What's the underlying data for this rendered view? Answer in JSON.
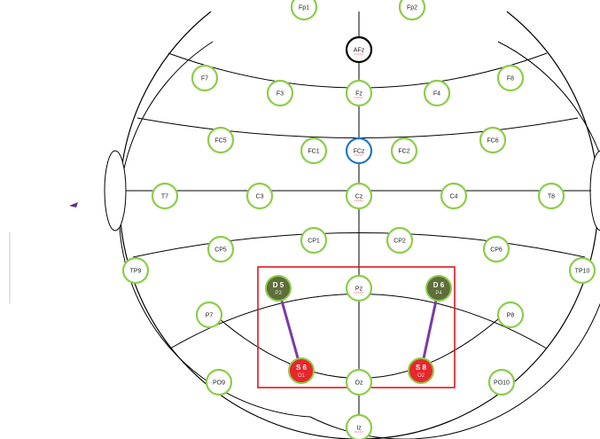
{
  "colors": {
    "electrode_stroke": "#8ccd4a",
    "reference_stroke": "#000000",
    "ground_stroke": "#1f78c8",
    "detector_fill": "#5f6e3a",
    "source_fill": "#e8272b",
    "channel_line": "#7a3aa8",
    "roi_box": "#e3161b"
  },
  "electrodes": [
    {
      "id": "Fp1",
      "label": "Fp1"
    },
    {
      "id": "Fp2",
      "label": "Fp2"
    },
    {
      "id": "AFz",
      "label": "AFz"
    },
    {
      "id": "F7",
      "label": "F7"
    },
    {
      "id": "F3",
      "label": "F3"
    },
    {
      "id": "Fz",
      "label": "Fz"
    },
    {
      "id": "F4",
      "label": "F4"
    },
    {
      "id": "F8",
      "label": "F8"
    },
    {
      "id": "FC5",
      "label": "FC5"
    },
    {
      "id": "FC1",
      "label": "FC1"
    },
    {
      "id": "FCz",
      "label": "FCz"
    },
    {
      "id": "FC2",
      "label": "FC2"
    },
    {
      "id": "FC6",
      "label": "FC6"
    },
    {
      "id": "T7",
      "label": "T7"
    },
    {
      "id": "C3",
      "label": "C3"
    },
    {
      "id": "Cz",
      "label": "Cz"
    },
    {
      "id": "C4",
      "label": "C4"
    },
    {
      "id": "T8",
      "label": "T8"
    },
    {
      "id": "CP5",
      "label": "CP5"
    },
    {
      "id": "CP1",
      "label": "CP1"
    },
    {
      "id": "CP2",
      "label": "CP2"
    },
    {
      "id": "CP6",
      "label": "CP6"
    },
    {
      "id": "TP9",
      "label": "TP9"
    },
    {
      "id": "TP10",
      "label": "TP10"
    },
    {
      "id": "P7",
      "label": "P7"
    },
    {
      "id": "Pz",
      "label": "Pz"
    },
    {
      "id": "P8",
      "label": "P8"
    },
    {
      "id": "PO9",
      "label": "PO9"
    },
    {
      "id": "Oz",
      "label": "Oz"
    },
    {
      "id": "PO10",
      "label": "PO10"
    },
    {
      "id": "Iz",
      "label": "Iz"
    }
  ],
  "optodes": [
    {
      "id": "D5",
      "label": "D 5",
      "sub": "P3",
      "kind": "detector"
    },
    {
      "id": "D6",
      "label": "D 6",
      "sub": "P4",
      "kind": "detector"
    },
    {
      "id": "S6",
      "label": "S 6",
      "sub": "O1",
      "kind": "source"
    },
    {
      "id": "S8",
      "label": "S 8",
      "sub": "O2",
      "kind": "source"
    }
  ],
  "channels": [
    {
      "from": "D5",
      "to": "S6"
    },
    {
      "from": "D6",
      "to": "S8"
    }
  ]
}
